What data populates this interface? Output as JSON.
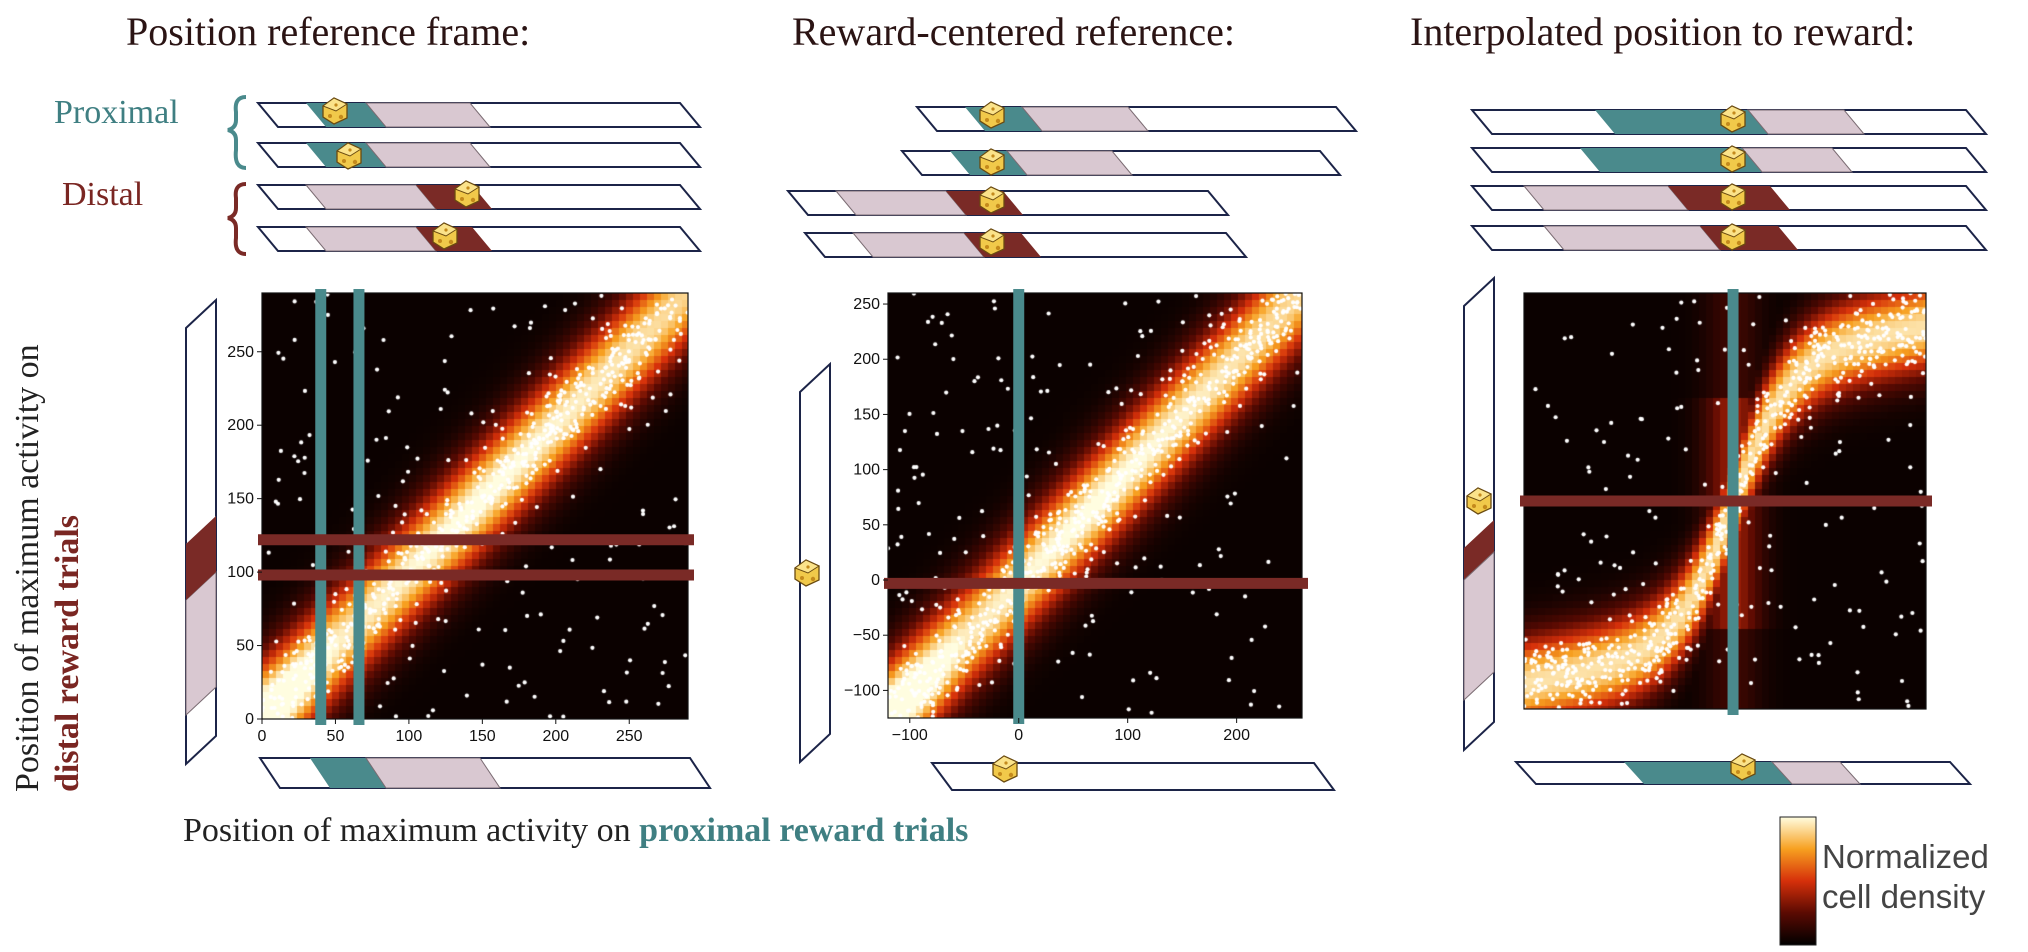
{
  "titles": {
    "position": "Position reference frame:",
    "reward_centered": "Reward-centered reference:",
    "interpolated": "Interpolated position to reward:"
  },
  "legend": {
    "proximal": "Proximal",
    "distal": "Distal"
  },
  "axis_captions": {
    "x_prefix": "Position of maximum activity on ",
    "x_highlight": "proximal reward trials",
    "y_line1": "Position of maximum activity on",
    "y_line2": "distal reward trials"
  },
  "colorbar": {
    "label_line1": "Normalized",
    "label_line2": "cell density"
  },
  "colors": {
    "proximal": "#4a8a8c",
    "distal": "#7a2a26",
    "track_zone": "#d9c8d1",
    "track_outline": "#1c2448"
  },
  "icons": {
    "reward": "cheese-icon"
  },
  "chart_data": [
    {
      "type": "heatmap",
      "name": "position-reference-frame",
      "xlim": [
        0,
        290
      ],
      "ylim": [
        0,
        290
      ],
      "xticks": [
        "0",
        "50",
        "100",
        "150",
        "200",
        "250"
      ],
      "yticks": [
        "0",
        "50",
        "100",
        "150",
        "200",
        "250"
      ],
      "proximal_reward_x": [
        40,
        66
      ],
      "distal_reward_y": [
        98,
        122
      ],
      "band": "diagonal"
    },
    {
      "type": "heatmap",
      "name": "reward-centered-reference",
      "xlim": [
        -120,
        260
      ],
      "ylim": [
        -125,
        260
      ],
      "xticks": [
        "-100",
        "0",
        "100",
        "200"
      ],
      "yticks": [
        "-100",
        "-50",
        "0",
        "50",
        "100",
        "150",
        "200",
        "250"
      ],
      "proximal_reward_x": [
        0
      ],
      "distal_reward_y": [
        -3
      ],
      "band": "diagonal"
    },
    {
      "type": "heatmap",
      "name": "interpolated-position-to-reward",
      "xlim": [
        0,
        1
      ],
      "ylim": [
        0,
        1
      ],
      "xticks": [],
      "yticks": [],
      "proximal_reward_x": [
        0.52
      ],
      "distal_reward_y": [
        0.5
      ],
      "band": "sigmoid"
    }
  ]
}
